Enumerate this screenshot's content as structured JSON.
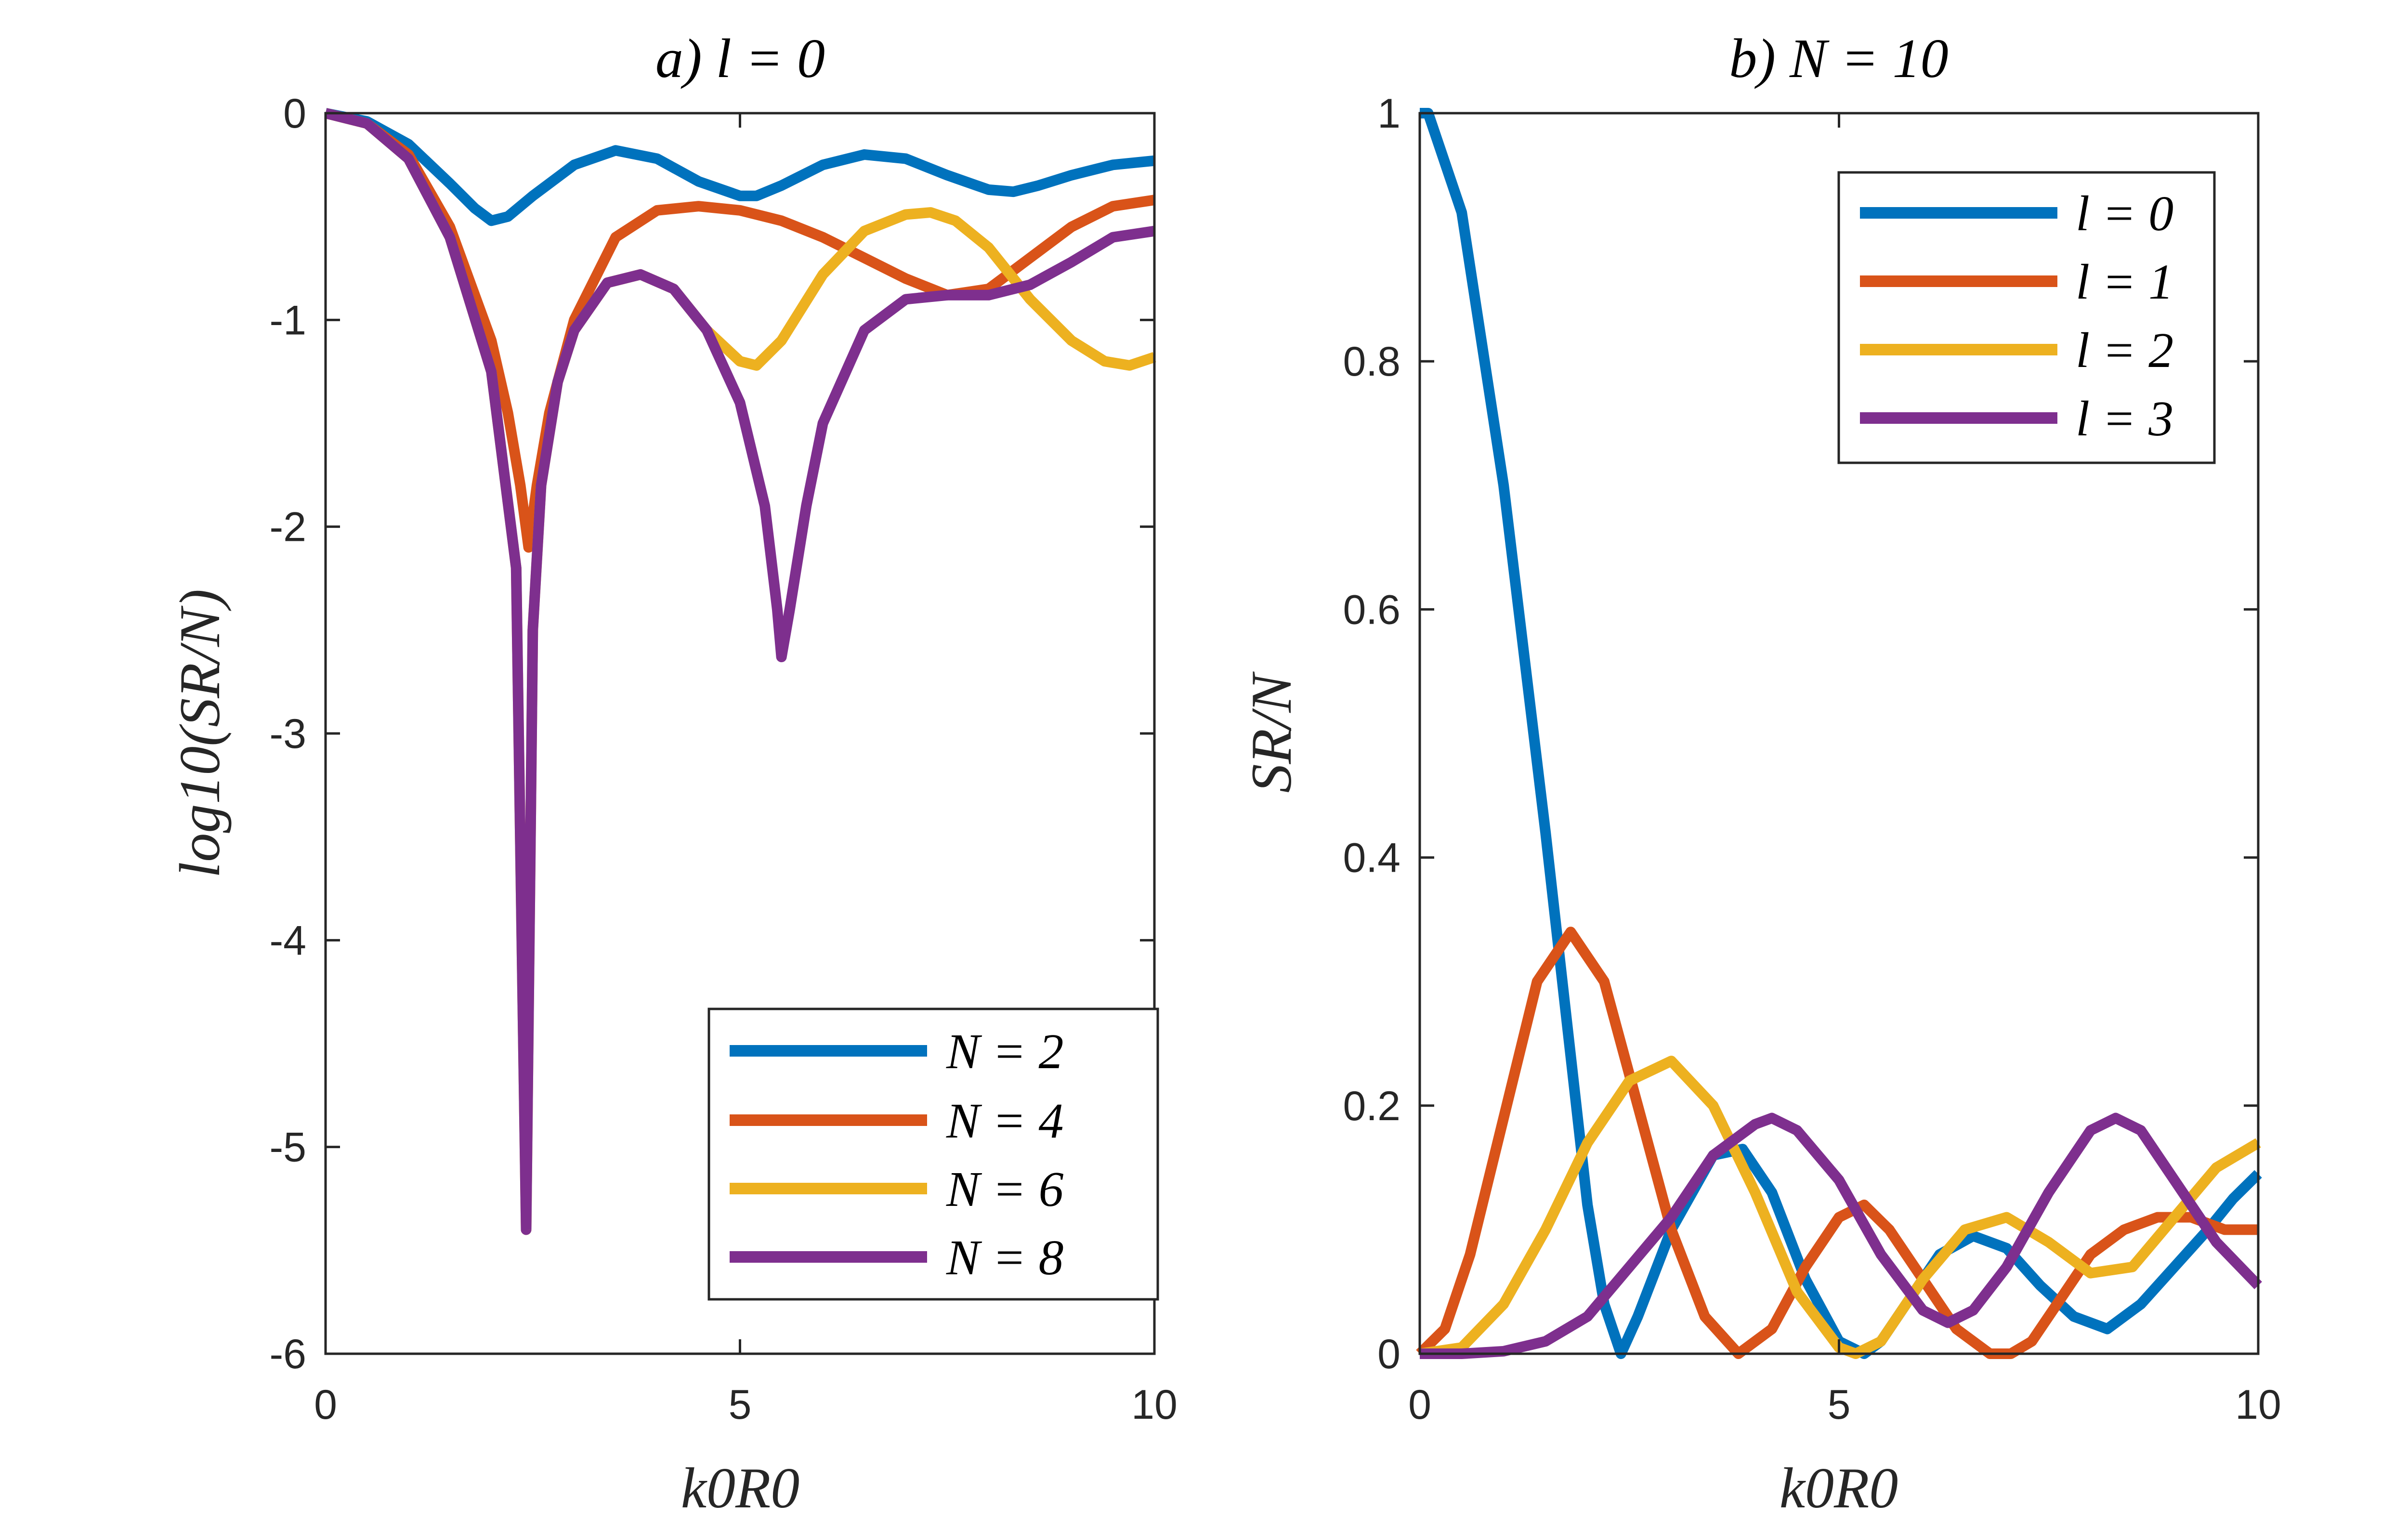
{
  "chart_data": [
    {
      "id": "a",
      "type": "line",
      "title": "a) l = 0",
      "xlabel": "k0R0",
      "ylabel": "log10(SR/N)",
      "xlim": [
        0,
        10
      ],
      "ylim": [
        -6,
        0
      ],
      "xticks": [
        "0",
        "5",
        "10"
      ],
      "yticks": [
        "0",
        "-1",
        "-2",
        "-3",
        "-4",
        "-5",
        "-6"
      ],
      "legend_position": "bottom-right",
      "series": [
        {
          "name": "N = 2",
          "color": "#0072BD",
          "x": [
            0,
            0.5,
            1,
            1.5,
            1.8,
            2,
            2.2,
            2.5,
            3,
            3.5,
            4,
            4.5,
            5,
            5.2,
            5.5,
            6,
            6.5,
            7,
            7.5,
            8,
            8.3,
            8.6,
            9,
            9.5,
            10
          ],
          "y": [
            0,
            -0.04,
            -0.15,
            -0.34,
            -0.46,
            -0.52,
            -0.5,
            -0.4,
            -0.25,
            -0.18,
            -0.22,
            -0.33,
            -0.4,
            -0.4,
            -0.35,
            -0.25,
            -0.2,
            -0.22,
            -0.3,
            -0.37,
            -0.38,
            -0.35,
            -0.3,
            -0.25,
            -0.23
          ]
        },
        {
          "name": "N = 4",
          "color": "#D95319",
          "x": [
            0,
            0.5,
            1,
            1.5,
            2,
            2.2,
            2.35,
            2.45,
            2.55,
            2.7,
            3,
            3.5,
            4,
            4.5,
            5,
            5.5,
            6,
            6.5,
            7,
            7.5,
            8,
            8.5,
            9,
            9.5,
            10
          ],
          "y": [
            0,
            -0.05,
            -0.2,
            -0.55,
            -1.1,
            -1.45,
            -1.8,
            -2.1,
            -1.8,
            -1.45,
            -1.0,
            -0.6,
            -0.47,
            -0.45,
            -0.47,
            -0.52,
            -0.6,
            -0.7,
            -0.8,
            -0.88,
            -0.85,
            -0.7,
            -0.55,
            -0.45,
            -0.42
          ]
        },
        {
          "name": "N = 6",
          "color": "#EDB120",
          "x": [
            0,
            0.5,
            1,
            1.5,
            2,
            2.3,
            2.42,
            2.5,
            2.6,
            2.8,
            3,
            3.4,
            3.8,
            4.2,
            4.6,
            5,
            5.2,
            5.5,
            6,
            6.5,
            7,
            7.3,
            7.6,
            8,
            8.5,
            9,
            9.4,
            9.7,
            10
          ],
          "y": [
            0,
            -0.05,
            -0.22,
            -0.6,
            -1.25,
            -2.2,
            -5.4,
            -2.5,
            -1.8,
            -1.3,
            -1.05,
            -0.82,
            -0.78,
            -0.85,
            -1.05,
            -1.2,
            -1.22,
            -1.1,
            -0.78,
            -0.57,
            -0.49,
            -0.48,
            -0.52,
            -0.65,
            -0.9,
            -1.1,
            -1.2,
            -1.22,
            -1.18
          ]
        },
        {
          "name": "N = 8",
          "color": "#7E2F8E",
          "x": [
            0,
            0.5,
            1,
            1.5,
            2,
            2.3,
            2.42,
            2.5,
            2.6,
            2.8,
            3,
            3.4,
            3.8,
            4.2,
            4.6,
            5,
            5.3,
            5.45,
            5.5,
            5.6,
            5.8,
            6,
            6.5,
            7,
            7.5,
            8,
            8.5,
            9,
            9.5,
            10
          ],
          "y": [
            0,
            -0.05,
            -0.22,
            -0.6,
            -1.25,
            -2.2,
            -5.4,
            -2.5,
            -1.8,
            -1.3,
            -1.05,
            -0.82,
            -0.78,
            -0.85,
            -1.05,
            -1.4,
            -1.9,
            -2.4,
            -2.63,
            -2.4,
            -1.9,
            -1.5,
            -1.05,
            -0.9,
            -0.88,
            -0.88,
            -0.83,
            -0.72,
            -0.6,
            -0.57
          ]
        }
      ]
    },
    {
      "id": "b",
      "type": "line",
      "title": "b) N = 10",
      "xlabel": "k0R0",
      "ylabel": "SR/N",
      "xlim": [
        0,
        10
      ],
      "ylim": [
        0,
        1
      ],
      "xticks": [
        "0",
        "5",
        "10"
      ],
      "yticks": [
        "0",
        "0.2",
        "0.4",
        "0.6",
        "0.8",
        "1"
      ],
      "legend_position": "top-right",
      "series": [
        {
          "name": "l = 0",
          "color": "#0072BD",
          "x": [
            0,
            0.1,
            0.5,
            1,
            1.5,
            2,
            2.2,
            2.4,
            2.6,
            3,
            3.5,
            3.85,
            4.2,
            4.6,
            5,
            5.3,
            5.5,
            5.8,
            6.2,
            6.6,
            7.0,
            7.4,
            7.8,
            8.2,
            8.6,
            9.0,
            9.4,
            9.7,
            10
          ],
          "y": [
            1,
            1,
            0.92,
            0.7,
            0.42,
            0.12,
            0.04,
            0.0,
            0.03,
            0.1,
            0.16,
            0.165,
            0.13,
            0.06,
            0.01,
            0.0,
            0.01,
            0.04,
            0.08,
            0.095,
            0.085,
            0.055,
            0.03,
            0.02,
            0.04,
            0.07,
            0.1,
            0.125,
            0.145
          ]
        },
        {
          "name": "l = 1",
          "color": "#D95319",
          "x": [
            0,
            0.3,
            0.6,
            1,
            1.4,
            1.8,
            2.2,
            2.6,
            3,
            3.4,
            3.8,
            4.2,
            4.6,
            5,
            5.3,
            5.6,
            6,
            6.4,
            6.8,
            7.05,
            7.3,
            7.6,
            8,
            8.4,
            8.8,
            9.2,
            9.6,
            10
          ],
          "y": [
            0,
            0.02,
            0.08,
            0.19,
            0.3,
            0.34,
            0.3,
            0.2,
            0.1,
            0.03,
            0.0,
            0.02,
            0.07,
            0.11,
            0.12,
            0.1,
            0.06,
            0.02,
            0.0,
            0.0,
            0.01,
            0.04,
            0.08,
            0.1,
            0.11,
            0.11,
            0.1,
            0.1
          ]
        },
        {
          "name": "l = 2",
          "color": "#EDB120",
          "x": [
            0,
            0.5,
            1,
            1.5,
            2,
            2.5,
            3,
            3.5,
            4,
            4.5,
            5,
            5.2,
            5.5,
            6,
            6.5,
            7,
            7.5,
            8,
            8.5,
            9,
            9.5,
            10
          ],
          "y": [
            0,
            0.005,
            0.04,
            0.1,
            0.17,
            0.22,
            0.236,
            0.2,
            0.13,
            0.05,
            0.005,
            0.0,
            0.01,
            0.06,
            0.1,
            0.11,
            0.09,
            0.065,
            0.07,
            0.11,
            0.15,
            0.17
          ]
        },
        {
          "name": "l = 3",
          "color": "#7E2F8E",
          "x": [
            0,
            0.5,
            1,
            1.5,
            2,
            2.5,
            3,
            3.5,
            4,
            4.2,
            4.5,
            5,
            5.5,
            6,
            6.3,
            6.6,
            7,
            7.5,
            8,
            8.3,
            8.6,
            9,
            9.5,
            10
          ],
          "y": [
            0,
            0,
            0.002,
            0.01,
            0.03,
            0.07,
            0.11,
            0.16,
            0.185,
            0.19,
            0.18,
            0.14,
            0.08,
            0.035,
            0.025,
            0.035,
            0.07,
            0.13,
            0.18,
            0.19,
            0.18,
            0.14,
            0.09,
            0.055
          ]
        }
      ]
    }
  ]
}
